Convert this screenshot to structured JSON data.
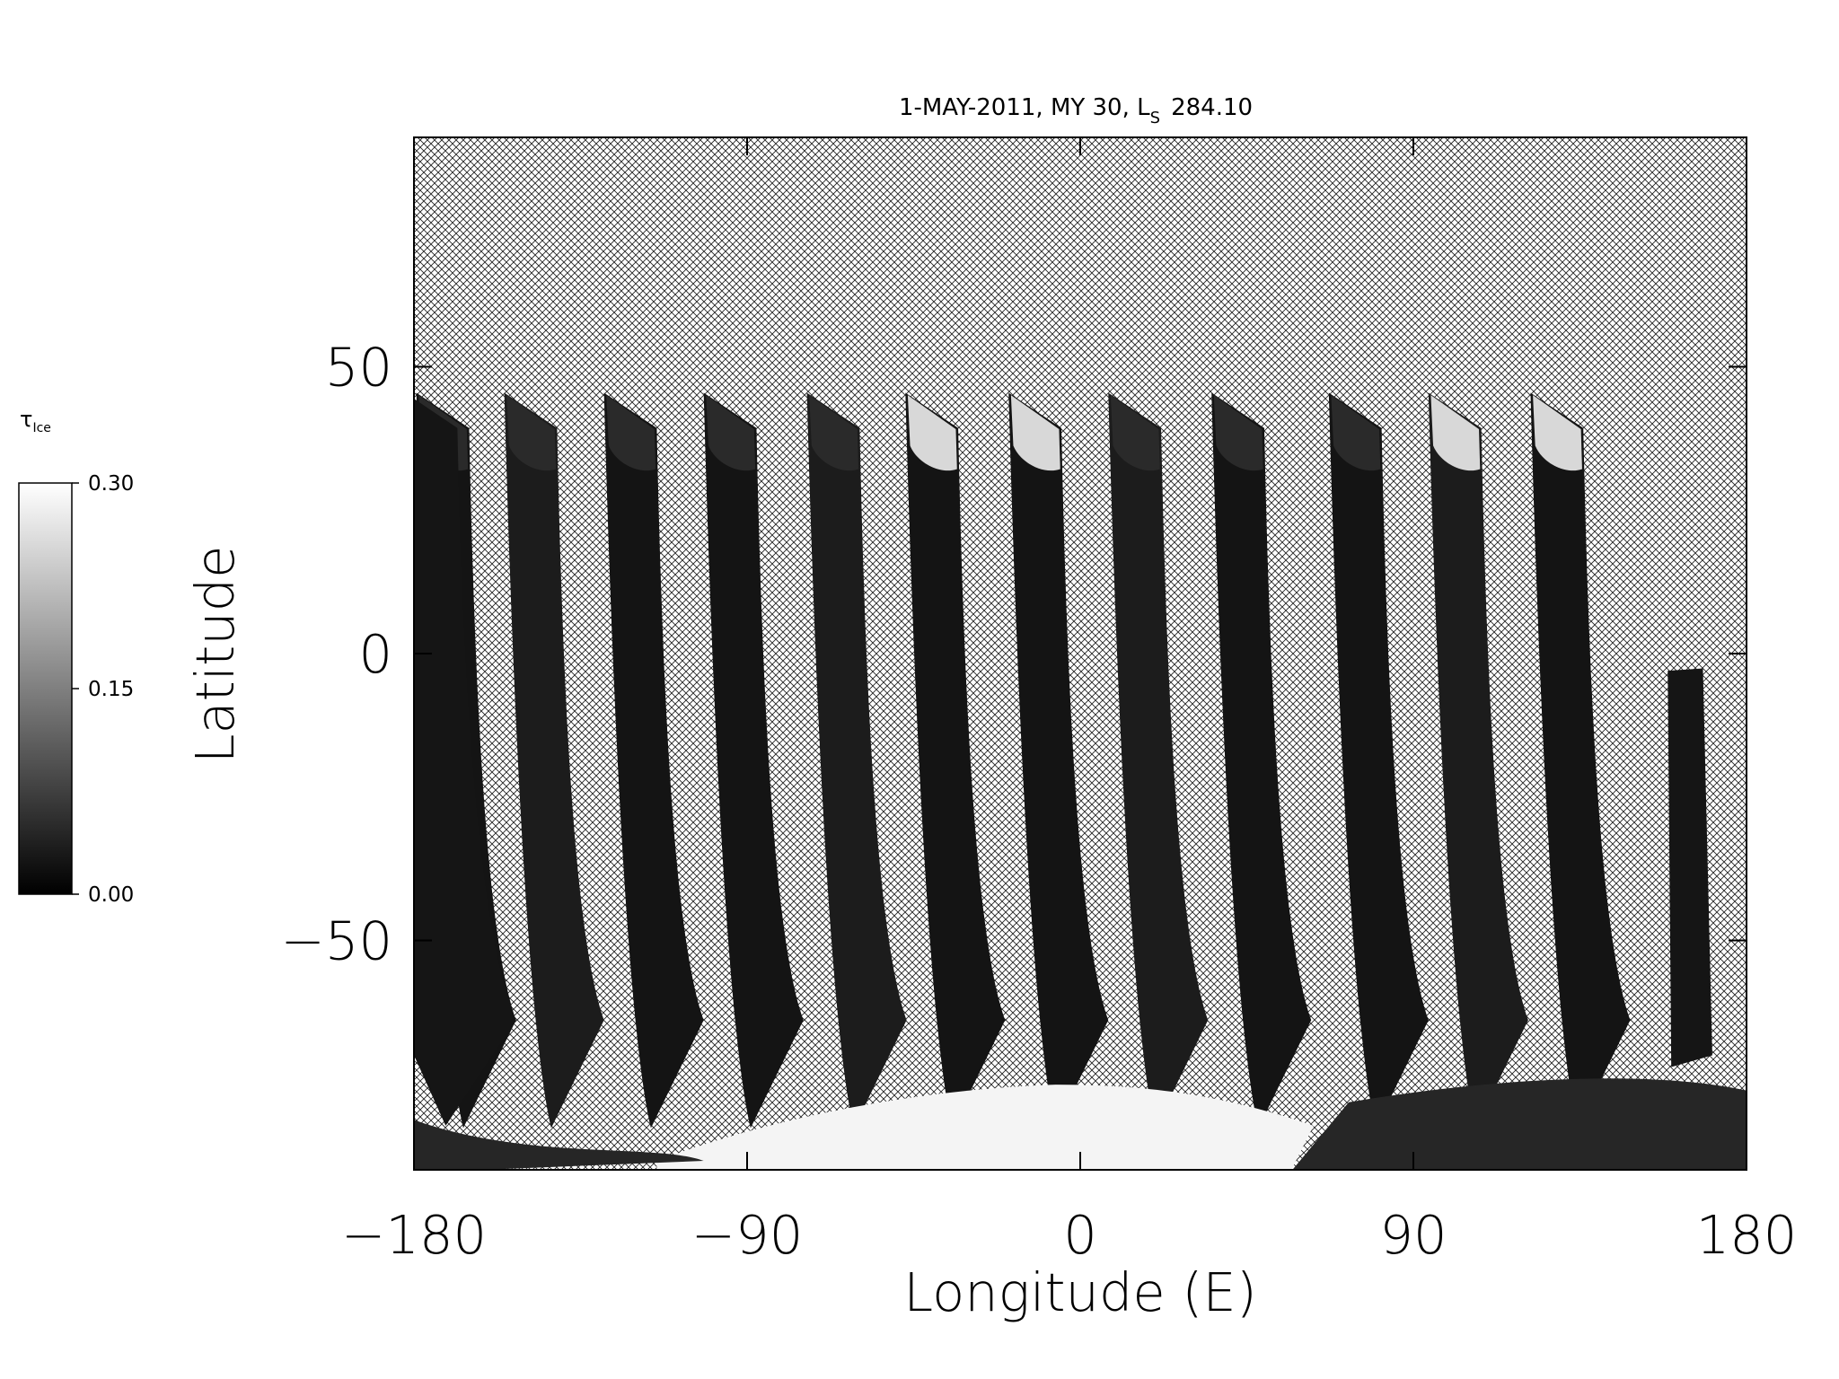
{
  "chart_data": {
    "type": "map",
    "title": {
      "text": "1-MAY-2011, MY 30,  L",
      "subscript": "S",
      "suffix": "284.10"
    },
    "x_label": "Longitude (E)",
    "y_label": "Latitude",
    "xlim": [
      -180,
      180
    ],
    "xticks": [
      {
        "value": -180,
        "label": "−180"
      },
      {
        "value": -90,
        "label": "−90"
      },
      0,
      90,
      180
    ],
    "ylim": [
      -90,
      90
    ],
    "yticks": [
      {
        "value": -50,
        "label": "−50"
      },
      0,
      50
    ],
    "colorbar": {
      "label": "τ",
      "label_subscript": "Ice",
      "clim": [
        0,
        0.3
      ],
      "ticks": [
        {
          "value": 0,
          "label": "0.00"
        },
        {
          "value": 0.15,
          "label": "0.15"
        },
        {
          "value": 0.3,
          "label": "0.30"
        }
      ],
      "colors": [
        "#000000",
        "#ffffff"
      ]
    }
  }
}
